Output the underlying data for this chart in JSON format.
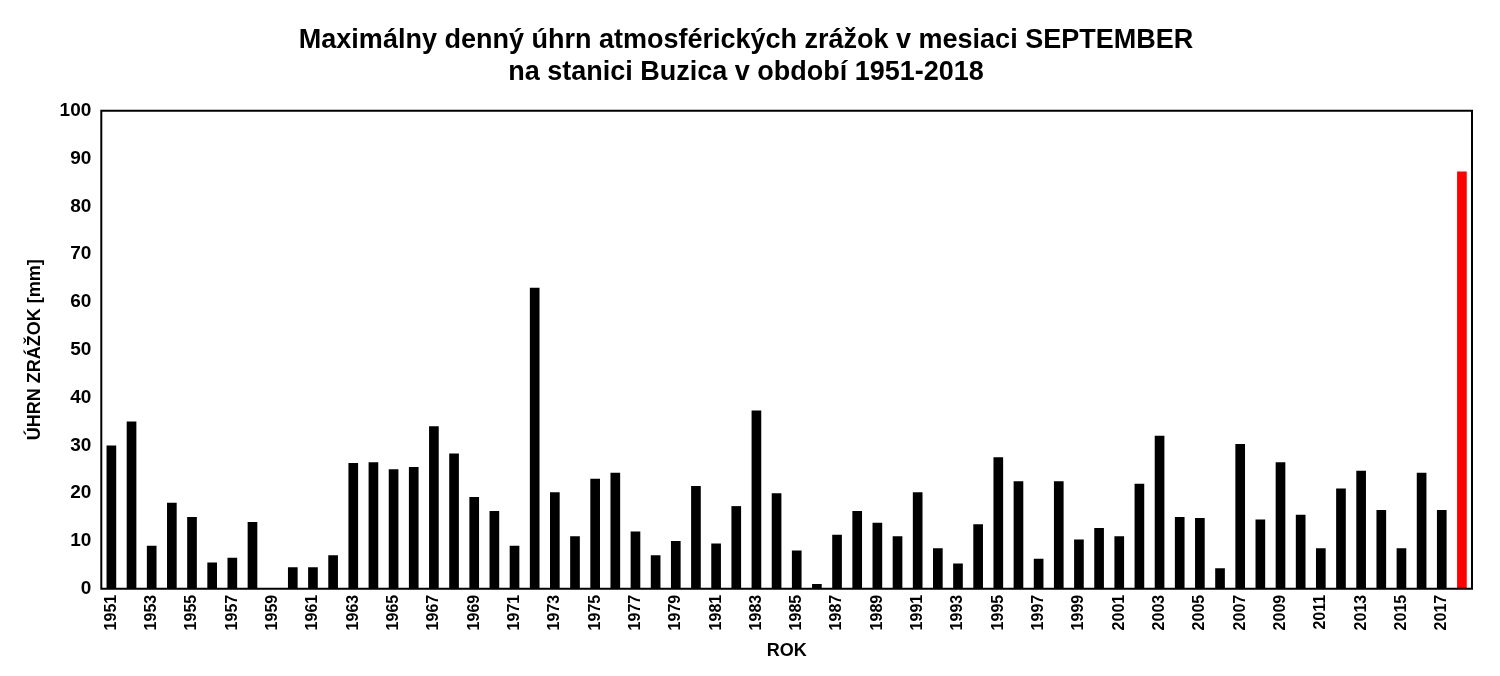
{
  "chart_data": {
    "type": "bar",
    "title": "Maximálny denný úhrn atmosférických zrážok v mesiaci SEPTEMBER\nna stanici Buzica v období 1951-2018",
    "xlabel": "ROK",
    "ylabel": "ÚHRN ZRÁŽOK [mm]",
    "categories": [
      "1951",
      null,
      "1953",
      null,
      "1955",
      null,
      "1957",
      null,
      "1959",
      null,
      "1961",
      null,
      "1963",
      null,
      "1965",
      null,
      "1967",
      null,
      "1969",
      null,
      "1971",
      null,
      "1973",
      null,
      "1975",
      null,
      "1977",
      null,
      "1979",
      null,
      "1981",
      null,
      "1983",
      null,
      "1985",
      null,
      "1987",
      null,
      "1989",
      null,
      "1991",
      null,
      "1993",
      null,
      "1995",
      null,
      "1997",
      null,
      "1999",
      null,
      "2001",
      null,
      "2003",
      null,
      "2005",
      null,
      "2007",
      null,
      "2009",
      null,
      "2011",
      null,
      "2013",
      null,
      "2015",
      null,
      "2017",
      null
    ],
    "values": [
      30,
      35,
      9,
      18,
      15,
      5.5,
      6.5,
      14,
      0,
      4.5,
      4.5,
      7,
      26.3,
      26.5,
      25,
      25.5,
      34,
      28.3,
      19.2,
      16.3,
      9,
      63,
      20.2,
      11,
      23,
      24.3,
      12,
      7,
      10,
      21.5,
      9.5,
      17.3,
      37.3,
      20,
      8,
      1,
      11.3,
      16.3,
      13.8,
      11,
      20.2,
      8.5,
      5.3,
      13.5,
      27.5,
      22.5,
      6.3,
      22.5,
      10.3,
      12.7,
      11,
      22,
      32,
      15,
      14.8,
      4.3,
      30.3,
      14.5,
      26.5,
      15.5,
      8.5,
      21,
      24.7,
      16.5,
      8.5,
      24.3,
      16.5,
      87.3
    ],
    "colors": [
      "#000000",
      "#000000",
      "#000000",
      "#000000",
      "#000000",
      "#000000",
      "#000000",
      "#000000",
      "#000000",
      "#000000",
      "#000000",
      "#000000",
      "#000000",
      "#000000",
      "#000000",
      "#000000",
      "#000000",
      "#000000",
      "#000000",
      "#000000",
      "#000000",
      "#000000",
      "#000000",
      "#000000",
      "#000000",
      "#000000",
      "#000000",
      "#000000",
      "#000000",
      "#000000",
      "#000000",
      "#000000",
      "#000000",
      "#000000",
      "#000000",
      "#000000",
      "#000000",
      "#000000",
      "#000000",
      "#000000",
      "#000000",
      "#000000",
      "#000000",
      "#000000",
      "#000000",
      "#000000",
      "#000000",
      "#000000",
      "#000000",
      "#000000",
      "#000000",
      "#000000",
      "#000000",
      "#000000",
      "#000000",
      "#000000",
      "#000000",
      "#000000",
      "#000000",
      "#000000",
      "#000000",
      "#000000",
      "#000000",
      "#000000",
      "#000000",
      "#000000",
      "#000000",
      "#ff0000"
    ],
    "ylim": [
      0,
      100
    ],
    "yticks": [
      0,
      10,
      20,
      30,
      40,
      50,
      60,
      70,
      80,
      90,
      100
    ],
    "grid": false,
    "legend": false
  }
}
